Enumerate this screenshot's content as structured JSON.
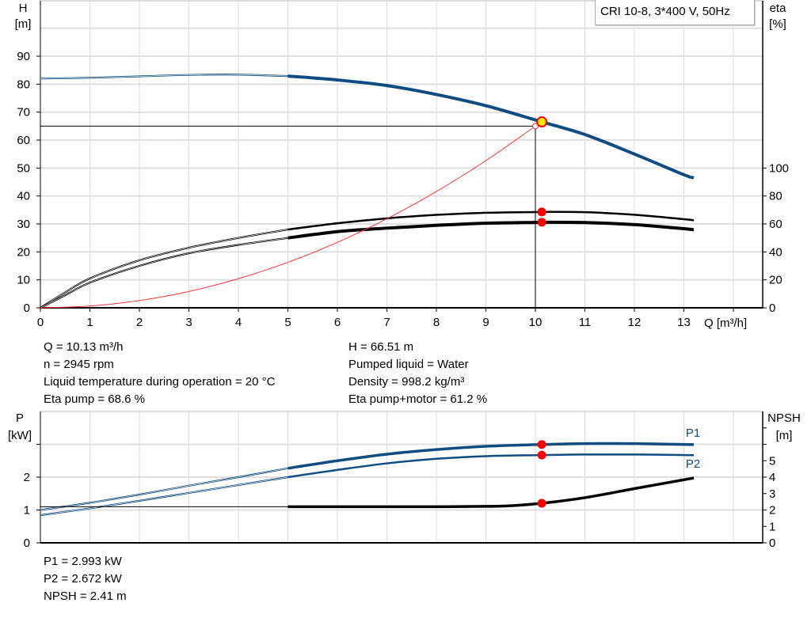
{
  "legend": "CRI 10-8, 3*400 V, 50Hz",
  "info_top_left": [
    "Q = 10.13 m³/h",
    "n = 2945 rpm",
    "Liquid temperature during operation = 20 °C",
    "Eta pump = 68.6 %"
  ],
  "info_top_right": [
    "H = 66.51 m",
    "Pumped liquid = Water",
    "Density = 998.2 kg/m³",
    "Eta pump+motor = 61.2 %"
  ],
  "info_bottom": [
    "P1 = 2.993 kW",
    "P2 = 2.672 kW",
    "NPSH = 2.41 m"
  ],
  "chart_data": [
    {
      "type": "line",
      "xlabel": "Q [m³/h]",
      "ylabel_left": [
        "H",
        "[m]"
      ],
      "ylabel_right": [
        "eta",
        "[%]"
      ],
      "x_ticks": [
        0,
        1,
        2,
        3,
        4,
        5,
        6,
        7,
        8,
        9,
        10,
        11,
        12,
        13
      ],
      "y_left_ticks": [
        0,
        10,
        20,
        30,
        40,
        50,
        60,
        70,
        80,
        90
      ],
      "y_right_ticks": [
        0,
        20,
        40,
        60,
        80,
        100
      ],
      "xlim": [
        0,
        14.6
      ],
      "ylim_left": [
        0,
        110
      ],
      "ylim_right": [
        0,
        220
      ],
      "grid": true,
      "operating_range": [
        5,
        13.2
      ],
      "series": [
        {
          "key": "H",
          "axis": "left",
          "color": "#0f4c81",
          "x": [
            0,
            1,
            2,
            3,
            4,
            5,
            6,
            7,
            8,
            9,
            10,
            10.13,
            11,
            12,
            13,
            13.2
          ],
          "y": [
            82,
            82.3,
            82.8,
            83.3,
            83.4,
            82.9,
            81.5,
            79.5,
            76.3,
            72.3,
            67.2,
            66.51,
            62,
            55,
            47.6,
            46.5
          ]
        },
        {
          "key": "eta_pump",
          "axis": "right",
          "color": "#000000",
          "x": [
            0,
            0.5,
            1,
            2,
            3,
            4,
            5,
            6,
            7,
            8,
            9,
            10,
            10.13,
            11,
            12,
            13,
            13.2
          ],
          "y": [
            0,
            11,
            21,
            34,
            43,
            50,
            56,
            60.5,
            64,
            66.5,
            68,
            68.5,
            68.6,
            68.4,
            66.6,
            63.4,
            62.6
          ]
        },
        {
          "key": "eta_pump_motor",
          "axis": "right",
          "color": "#000000",
          "x": [
            0,
            0.5,
            1,
            2,
            3,
            4,
            5,
            6,
            7,
            8,
            9,
            10,
            10.13,
            11,
            12,
            13,
            13.2
          ],
          "y": [
            0,
            9,
            18,
            30,
            39,
            45,
            50,
            54.5,
            57,
            59,
            60.5,
            61.1,
            61.2,
            61,
            59.5,
            56.6,
            55.8
          ]
        },
        {
          "key": "system",
          "axis": "left",
          "color": "#ff3333",
          "x": [
            0,
            1,
            2,
            3,
            4,
            5,
            6,
            7,
            8,
            9,
            10
          ],
          "y": [
            0,
            0.65,
            2.6,
            5.85,
            10.4,
            16.25,
            23.4,
            31.85,
            41.6,
            52.65,
            65
          ]
        }
      ],
      "duty_point": {
        "q": 10,
        "h": 65
      },
      "operating_point": {
        "q": 10.13,
        "h": 66.51,
        "eta_pump": 68.6,
        "eta_pump_motor": 61.2
      }
    },
    {
      "type": "line",
      "ylabel_left": [
        "P",
        "[kW]"
      ],
      "ylabel_right": [
        "NPSH",
        "[m]"
      ],
      "y_left_ticks": [
        0,
        1,
        2
      ],
      "y_left_minor": [
        3
      ],
      "y_right_ticks": [
        0,
        1,
        2,
        3,
        4,
        5
      ],
      "y_right_minor": [
        6,
        7
      ],
      "xlim": [
        0,
        14.6
      ],
      "ylim_left": [
        0,
        4
      ],
      "ylim_right": [
        0,
        8
      ],
      "grid": true,
      "operating_range": [
        5,
        13.2
      ],
      "series": [
        {
          "key": "P1",
          "name": "P1",
          "axis": "left",
          "color": "#0f4c81",
          "x": [
            0,
            1,
            2,
            3,
            4,
            5,
            6,
            7,
            8,
            9,
            10,
            10.13,
            11,
            12,
            13.2
          ],
          "y": [
            1.0,
            1.22,
            1.47,
            1.74,
            2.0,
            2.27,
            2.5,
            2.7,
            2.84,
            2.94,
            2.99,
            2.993,
            3.02,
            3.02,
            2.99
          ]
        },
        {
          "key": "P2",
          "name": "P2",
          "axis": "left",
          "color": "#0f4c81",
          "x": [
            0,
            1,
            2,
            3,
            4,
            5,
            6,
            7,
            8,
            9,
            10,
            10.13,
            11,
            12,
            13.2
          ],
          "y": [
            0.84,
            1.05,
            1.28,
            1.52,
            1.76,
            2.0,
            2.22,
            2.42,
            2.56,
            2.64,
            2.67,
            2.672,
            2.69,
            2.69,
            2.67
          ]
        },
        {
          "key": "NPSH",
          "axis": "right",
          "color": "#000000",
          "x": [
            0,
            5,
            6,
            7,
            8,
            9,
            9.5,
            10.13,
            11,
            12,
            13.2
          ],
          "y": [
            2.2,
            2.2,
            2.2,
            2.2,
            2.2,
            2.22,
            2.26,
            2.41,
            2.75,
            3.3,
            3.95
          ]
        }
      ],
      "operating_point": {
        "q": 10.13,
        "P1": 2.993,
        "P2": 2.672,
        "NPSH": 2.41
      }
    }
  ]
}
